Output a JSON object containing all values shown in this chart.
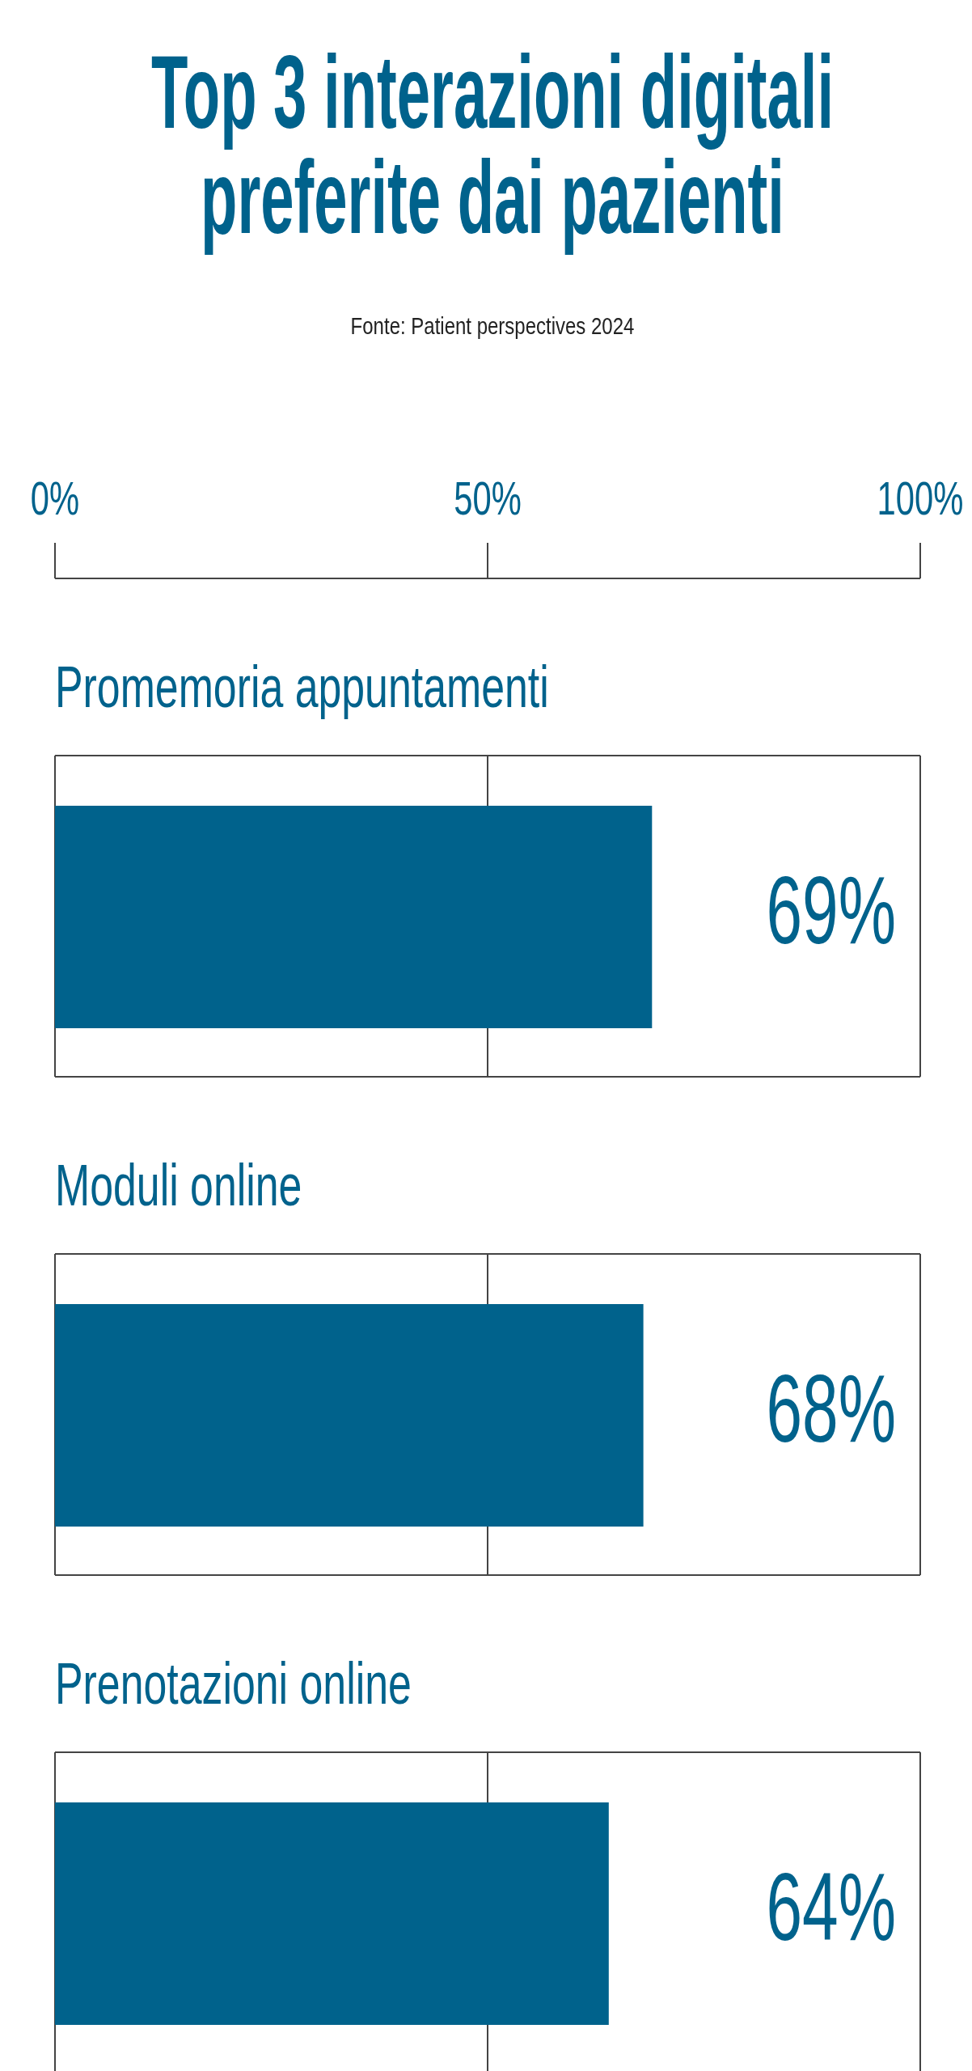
{
  "chart_data": {
    "type": "bar",
    "orientation": "horizontal",
    "title": "Top 3 interazioni digitali\npreferite dai pazienti",
    "annotations": [
      "Fonte: Patient perspectives 2024"
    ],
    "categories": [
      "Promemoria appuntamenti",
      "Moduli online",
      "Prenotazioni online"
    ],
    "values": [
      69,
      68,
      64
    ],
    "value_labels": [
      "69%",
      "68%",
      "64%"
    ],
    "color": "#00628c",
    "xlim": [
      0,
      100
    ],
    "xticks": [
      {
        "value": 0,
        "label": "0%"
      },
      {
        "value": 50,
        "label": "50%"
      },
      {
        "value": 100,
        "label": "100%"
      }
    ],
    "ref_lines": [
      {
        "axis": "x",
        "value": 50
      }
    ]
  }
}
